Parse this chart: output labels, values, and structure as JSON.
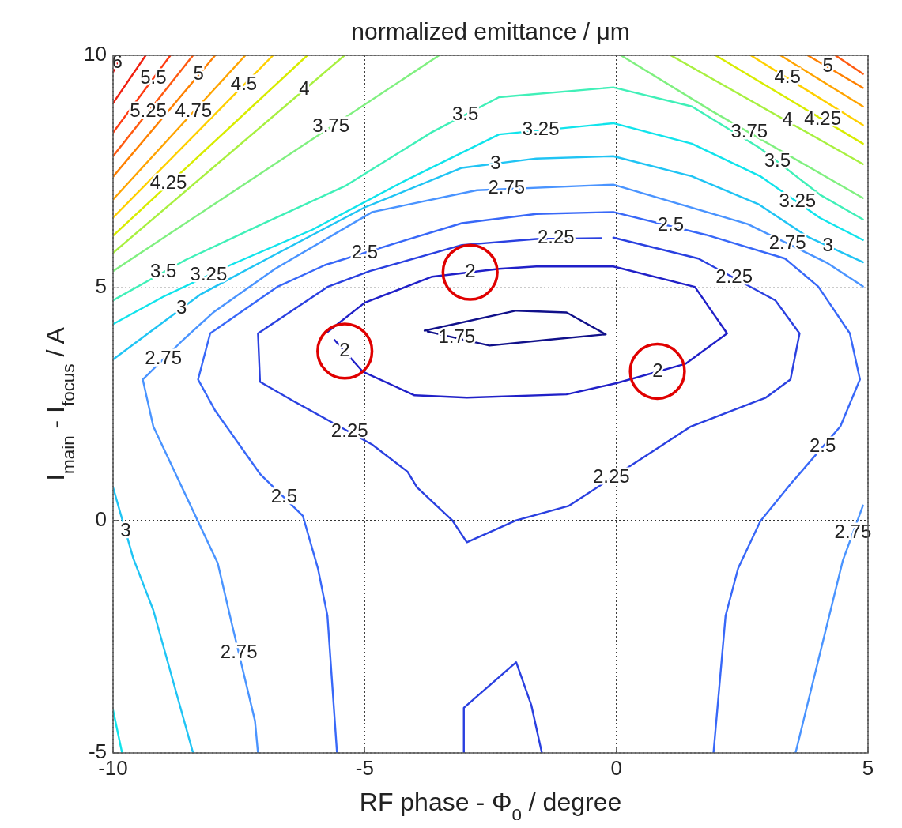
{
  "chart_data": {
    "type": "line",
    "title": "normalized emittance / μm",
    "xlabel": "RF phase - Φ$_{0}$ / degree",
    "ylabel": "I$_{main}$ - I$_{focus}$ / A",
    "xlim": [
      -10,
      5
    ],
    "ylim": [
      -5,
      10
    ],
    "xticks": [
      -10,
      -5,
      0,
      5
    ],
    "yticks": [
      -5,
      0,
      5,
      10
    ],
    "grid": true,
    "series": [
      {
        "color": "#10108a",
        "x": [
          -3.81,
          -1.99,
          -0.99,
          -0.21,
          -1.39,
          -2.52,
          -3.75
        ],
        "values": [
          4.08,
          4.51,
          4.47,
          4.0,
          3.88,
          3.76,
          4.06
        ]
      },
      {
        "color": "#2020c8",
        "x": [
          -5.74,
          -5.0,
          -3.66,
          -2.33,
          -1.59,
          -0.06,
          1.56,
          2.2,
          1.38,
          0.0,
          -0.99,
          -2.97,
          -4.01,
          -5.04,
          -5.6
        ],
        "values": [
          4.05,
          4.68,
          5.24,
          5.41,
          5.46,
          5.46,
          5.02,
          4.02,
          3.37,
          2.95,
          2.71,
          2.64,
          2.69,
          3.2,
          3.88
        ]
      },
      {
        "color": "#2a40e0",
        "x": [
          -0.06,
          1.63,
          3.16,
          3.64,
          3.46,
          2.97,
          1.48,
          0.59,
          -0.95,
          -1.99,
          -2.97,
          -3.26,
          -3.96,
          -4.15,
          -4.85,
          -6.44,
          -7.08,
          -7.12,
          -5.74,
          -4.9,
          -3.07,
          -1.59,
          -0.3,
          null,
          -3.03,
          -3.03,
          -1.99,
          -1.69,
          -1.48
        ],
        "values": [
          6.08,
          5.63,
          4.73,
          4.02,
          3.03,
          2.64,
          2.02,
          1.39,
          0.31,
          0.0,
          -0.47,
          0.0,
          0.71,
          1.05,
          1.63,
          2.58,
          2.98,
          4.02,
          5.02,
          5.36,
          5.92,
          6.05,
          6.07,
          null,
          -5,
          -4.03,
          -3.05,
          -3.97,
          -5
        ]
      },
      {
        "color": "#3868f8",
        "x": [
          -5.55,
          -5.74,
          -5.93,
          -6.23,
          -7.08,
          -7.97,
          -8.31,
          -8.07,
          -6.74,
          -5.79,
          -4.26,
          -3.07,
          -1.59,
          -0.06,
          1.78,
          3.35,
          4.01,
          4.64,
          4.84,
          4.45,
          3.46,
          2.86,
          2.42,
          2.17,
          1.93
        ],
        "values": [
          -5,
          -2.05,
          -1.03,
          0.1,
          1.0,
          2.36,
          3.03,
          4.02,
          5.02,
          5.49,
          6.0,
          6.39,
          6.59,
          6.63,
          6.14,
          5.63,
          5.03,
          4.02,
          3.03,
          2.02,
          0.78,
          -0.02,
          -1.03,
          -2.05,
          -5
        ]
      },
      {
        "color": "#4a94ff",
        "x": [
          -7.12,
          -7.18,
          -7.63,
          -7.92,
          -9.2,
          -9.41,
          -8.61,
          -8.01,
          -6.78,
          -4.85,
          -2.77,
          -0.06,
          2.61,
          4.2,
          4.9,
          null,
          4.9,
          4.5,
          3.56
        ],
        "values": [
          -5,
          -4.31,
          -2.27,
          -0.92,
          2.02,
          3.03,
          3.88,
          4.47,
          5.41,
          6.63,
          7.1,
          7.22,
          6.37,
          5.53,
          5.03,
          null,
          0.32,
          -0.86,
          -5
        ]
      },
      {
        "color": "#20c4f4",
        "x": [
          -8.41,
          -9.2,
          -9.6,
          -10,
          null,
          -10,
          -8.26,
          -6.93,
          -5.0,
          -3.07,
          -1.59,
          -0.06,
          1.5,
          2.82,
          3.8,
          4.9
        ],
        "values": [
          -5,
          -1.93,
          -0.81,
          0.71,
          null,
          3.46,
          4.86,
          5.63,
          6.73,
          7.58,
          7.78,
          7.83,
          7.4,
          6.8,
          6.1,
          5.55
        ]
      },
      {
        "color": "#10e4ec",
        "x": [
          -10,
          -9.0,
          -7.67,
          -6.04,
          -4.26,
          -2.33,
          -0.06,
          1.5,
          2.86,
          4.05,
          4.9,
          null,
          -10,
          -9.82
        ],
        "values": [
          4.22,
          4.81,
          5.49,
          6.25,
          7.27,
          8.3,
          8.54,
          8.1,
          7.4,
          6.5,
          6.03,
          null,
          -4.08,
          -5
        ]
      },
      {
        "color": "#40f0b8",
        "x": [
          -10,
          -8.56,
          -7.08,
          -5.37,
          -3.66,
          -2.33,
          -0.06,
          1.5,
          2.86,
          4.05,
          4.9
        ],
        "values": [
          4.73,
          5.6,
          6.35,
          7.2,
          8.35,
          9.1,
          9.31,
          8.9,
          8.0,
          7.0,
          6.47
        ]
      },
      {
        "color": "#80f080",
        "x": [
          -10,
          -3.52,
          null,
          0.09,
          1.9,
          4.9
        ],
        "values": [
          5.36,
          10,
          null,
          10,
          8.8,
          6.93
        ]
      },
      {
        "color": "#a8f040",
        "x": [
          -10,
          -5.4,
          null,
          1.08,
          4.9
        ],
        "values": [
          5.75,
          10,
          null,
          10,
          7.66
        ]
      },
      {
        "color": "#d8ec00",
        "x": [
          -10,
          -6.14,
          null,
          1.97,
          4.9
        ],
        "values": [
          6.12,
          10,
          null,
          10,
          8.1
        ]
      },
      {
        "color": "#ffd000",
        "x": [
          -10,
          -6.82,
          null,
          2.67,
          4.9
        ],
        "values": [
          6.51,
          10,
          null,
          10,
          8.5
        ]
      },
      {
        "color": "#ffa400",
        "x": [
          -10,
          -7.37,
          null,
          3.26,
          4.9
        ],
        "values": [
          6.9,
          10,
          null,
          10,
          8.9
        ]
      },
      {
        "color": "#ff8000",
        "x": [
          -10,
          -7.97,
          null,
          3.8,
          4.9
        ],
        "values": [
          7.39,
          10,
          null,
          10,
          9.3
        ]
      },
      {
        "color": "#ff5a10",
        "x": [
          -10,
          -8.41,
          null,
          4.35,
          4.9
        ],
        "values": [
          7.83,
          10,
          null,
          10,
          9.6
        ]
      },
      {
        "color": "#ff3a10",
        "x": [
          -10,
          -8.86
        ],
        "values": [
          8.34,
          10
        ]
      },
      {
        "color": "#f02010",
        "x": [
          -10,
          -9.35
        ],
        "values": [
          8.97,
          10
        ]
      },
      {
        "color": "#e00808",
        "x": [
          -10,
          -9.85
        ],
        "values": [
          9.64,
          10
        ]
      }
    ],
    "annotations": [
      {
        "text": "6",
        "x": -9.92,
        "y": 9.83
      },
      {
        "text": "5.5",
        "x": -9.2,
        "y": 9.5
      },
      {
        "text": "5.25",
        "x": -9.3,
        "y": 8.79
      },
      {
        "text": "5",
        "x": -8.3,
        "y": 9.58
      },
      {
        "text": "4.75",
        "x": -8.4,
        "y": 8.79
      },
      {
        "text": "4.5",
        "x": -7.4,
        "y": 9.36
      },
      {
        "text": "4",
        "x": -6.2,
        "y": 9.26
      },
      {
        "text": "3.75",
        "x": -5.67,
        "y": 8.46
      },
      {
        "text": "4.25",
        "x": -8.9,
        "y": 7.23
      },
      {
        "text": "3.5",
        "x": -9.0,
        "y": 5.33
      },
      {
        "text": "3.25",
        "x": -8.1,
        "y": 5.27
      },
      {
        "text": "3",
        "x": -8.64,
        "y": 4.55
      },
      {
        "text": "2.75",
        "x": -9.0,
        "y": 3.47
      },
      {
        "text": "3.5",
        "x": -3.0,
        "y": 8.72
      },
      {
        "text": "3.25",
        "x": -1.5,
        "y": 8.39
      },
      {
        "text": "3",
        "x": -2.4,
        "y": 7.67
      },
      {
        "text": "2.75",
        "x": -2.18,
        "y": 7.13
      },
      {
        "text": "2.5",
        "x": -5.0,
        "y": 5.75
      },
      {
        "text": "2.25",
        "x": -1.2,
        "y": 6.06
      },
      {
        "text": "2",
        "x": -2.9,
        "y": 5.34
      },
      {
        "text": "2",
        "x": -5.4,
        "y": 3.64
      },
      {
        "text": "1.75",
        "x": -3.17,
        "y": 3.92
      },
      {
        "text": "2",
        "x": 0.82,
        "y": 3.2
      },
      {
        "text": "2.25",
        "x": -5.3,
        "y": 1.9
      },
      {
        "text": "2.25",
        "x": -0.1,
        "y": 0.91
      },
      {
        "text": "2.5",
        "x": -6.6,
        "y": 0.49
      },
      {
        "text": "2.75",
        "x": -7.5,
        "y": -2.86
      },
      {
        "text": "3",
        "x": -9.75,
        "y": -0.24
      },
      {
        "text": "5",
        "x": 4.2,
        "y": 9.75
      },
      {
        "text": "4.5",
        "x": 3.4,
        "y": 9.51
      },
      {
        "text": "4.25",
        "x": 4.1,
        "y": 8.62
      },
      {
        "text": "4",
        "x": 3.4,
        "y": 8.59
      },
      {
        "text": "3.75",
        "x": 2.64,
        "y": 8.34
      },
      {
        "text": "3.5",
        "x": 3.2,
        "y": 7.71
      },
      {
        "text": "3.25",
        "x": 3.6,
        "y": 6.84
      },
      {
        "text": "3",
        "x": 4.2,
        "y": 5.9
      },
      {
        "text": "2.75",
        "x": 3.4,
        "y": 5.95
      },
      {
        "text": "2.5",
        "x": 1.08,
        "y": 6.33
      },
      {
        "text": "2.25",
        "x": 2.34,
        "y": 5.21
      },
      {
        "text": "2.5",
        "x": 4.1,
        "y": 1.58
      },
      {
        "text": "2.75",
        "x": 4.7,
        "y": -0.27
      }
    ]
  }
}
